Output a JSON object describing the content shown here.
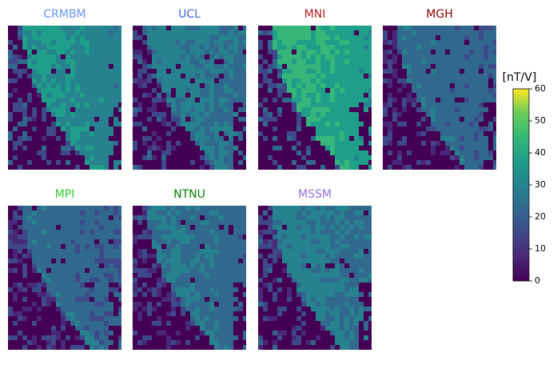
{
  "chart_data": {
    "type": "image-grid",
    "panels": [
      {
        "title": "CRMBM",
        "title_color": "#6495ed"
      },
      {
        "title": "UCL",
        "title_color": "#4169e1"
      },
      {
        "title": "MNI",
        "title_color": "#b22222"
      },
      {
        "title": "MGH",
        "title_color": "#8b0000"
      },
      {
        "title": "MPI",
        "title_color": "#32cd32"
      },
      {
        "title": "NTNU",
        "title_color": "#008000"
      },
      {
        "title": "MSSM",
        "title_color": "#9370db"
      }
    ],
    "colorbar": {
      "label": "[nT/V]",
      "colormap": "viridis",
      "clim": [
        0,
        60
      ],
      "ticks": [
        0,
        10,
        20,
        30,
        40,
        50,
        60
      ]
    }
  }
}
